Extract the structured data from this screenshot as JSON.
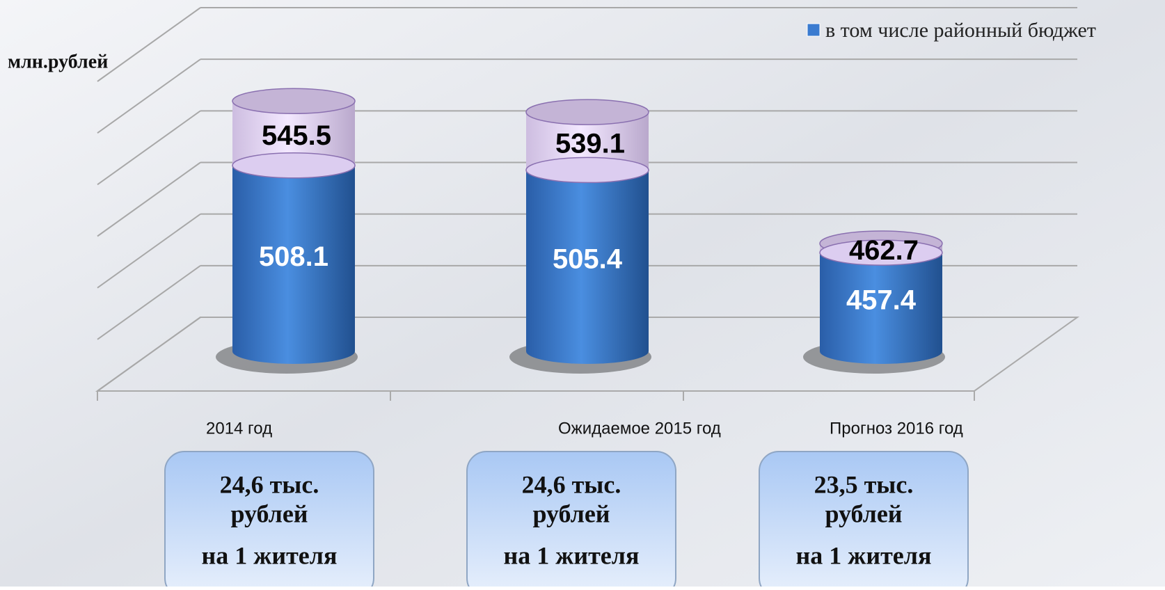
{
  "chart_data": {
    "type": "cylinder",
    "y_axis_label": "млн.рублей",
    "categories": [
      "2014 год",
      "Ожидаемое 2015 год",
      "Прогноз 2016 год"
    ],
    "series": [
      {
        "color": "#e6d6f6",
        "values": [
          545.5,
          539.1,
          462.7
        ]
      },
      {
        "name": "в том числе районный бюджет",
        "color": "#3a7bd0",
        "values": [
          508.1,
          505.4,
          457.4
        ]
      }
    ],
    "ylim": [
      400,
      580
    ],
    "yticks": [
      400,
      430,
      460,
      490,
      520,
      550,
      580
    ],
    "grid": true,
    "legend": "top-right",
    "annotations": [
      [
        "24,6 тыс.",
        "рублей",
        "на 1 жителя"
      ],
      [
        "24,6 тыс.",
        "рублей",
        "на 1 жителя"
      ],
      [
        "23,5 тыс.",
        "рублей",
        "на 1 жителя"
      ]
    ]
  }
}
